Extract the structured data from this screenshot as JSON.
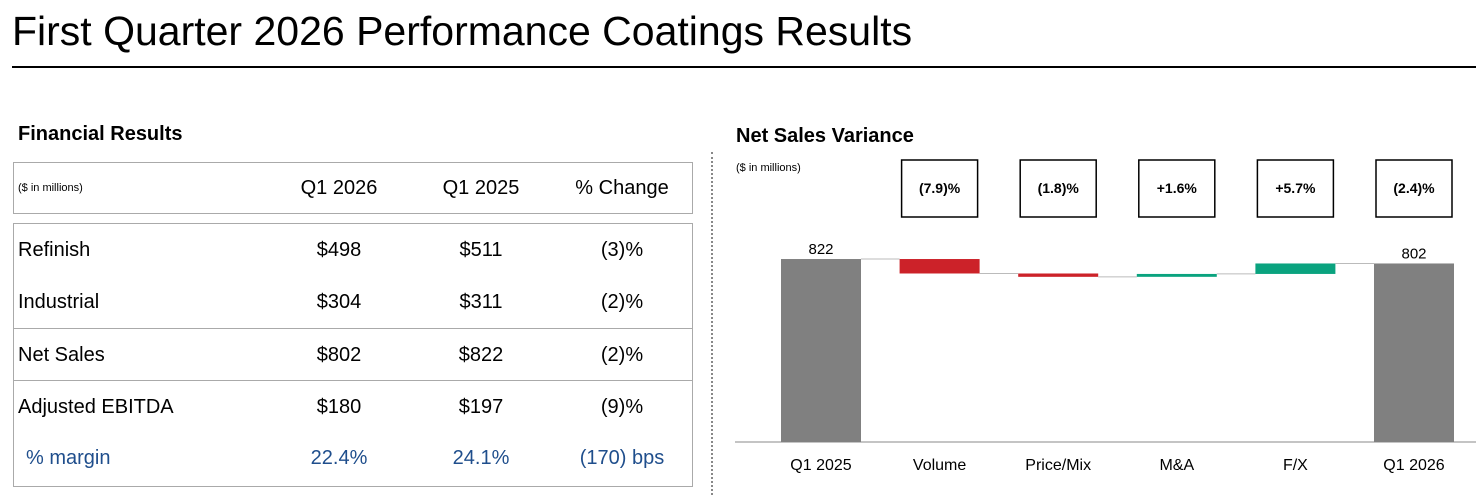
{
  "title": "First Quarter 2026 Performance Coatings Results",
  "table": {
    "title": "Financial Results",
    "header": [
      "($ in millions)",
      "Q1 2026",
      "Q1 2025",
      "% Change"
    ],
    "rows": [
      [
        "Refinish",
        "$498",
        "$511",
        "(3)%"
      ],
      [
        "Industrial",
        "$304",
        "$311",
        "(2)%"
      ],
      [
        "Net Sales",
        "$802",
        "$822",
        "(2)%"
      ],
      [
        "Adjusted EBITDA",
        "$180",
        "$197",
        "(9)%"
      ],
      [
        "% margin",
        "22.4%",
        "24.1%",
        "(170) bps"
      ]
    ]
  },
  "chart_data": {
    "type": "waterfall",
    "title": "Net Sales Variance",
    "subtitle": "($ in millions)",
    "categories": [
      "Q1 2025",
      "Volume",
      "Price/Mix",
      "M&A",
      "F/X",
      "Q1 2026"
    ],
    "values": [
      822,
      -65,
      -15,
      13,
      47,
      802
    ],
    "colors": [
      "#808080",
      "#cc2229",
      "#cc2229",
      "#0aa37f",
      "#0aa37f",
      "#808080"
    ],
    "change_labels": [
      null,
      "(7.9)%",
      "(1.8)%",
      "+1.6%",
      "+5.7%",
      "(2.4)%"
    ],
    "ylim": [
      0,
      1000
    ]
  }
}
